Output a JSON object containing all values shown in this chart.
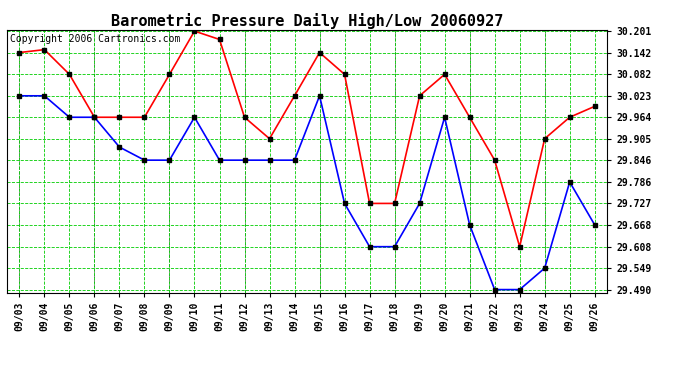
{
  "title": "Barometric Pressure Daily High/Low 20060927",
  "copyright": "Copyright 2006 Cartronics.com",
  "background_color": "#ffffff",
  "plot_bg_color": "#ffffff",
  "grid_color": "#00cc00",
  "dates": [
    "09/03",
    "09/04",
    "09/05",
    "09/06",
    "09/07",
    "09/08",
    "09/09",
    "09/10",
    "09/11",
    "09/12",
    "09/13",
    "09/14",
    "09/15",
    "09/16",
    "09/17",
    "09/18",
    "09/19",
    "09/20",
    "09/21",
    "09/22",
    "09/23",
    "09/24",
    "09/25",
    "09/26"
  ],
  "high_values": [
    30.142,
    30.15,
    30.082,
    29.964,
    29.964,
    29.964,
    30.082,
    30.201,
    30.178,
    29.964,
    29.905,
    30.023,
    30.142,
    30.082,
    29.727,
    29.727,
    30.023,
    30.082,
    29.964,
    29.846,
    29.608,
    29.905,
    29.964,
    29.994
  ],
  "low_values": [
    30.023,
    30.023,
    29.964,
    29.964,
    29.882,
    29.846,
    29.846,
    29.964,
    29.846,
    29.846,
    29.846,
    29.846,
    30.023,
    29.727,
    29.608,
    29.608,
    29.727,
    29.964,
    29.668,
    29.49,
    29.49,
    29.549,
    29.786,
    29.668
  ],
  "high_color": "#ff0000",
  "low_color": "#0000ff",
  "marker_color": "#000000",
  "marker_size": 3,
  "line_width": 1.2,
  "ylim_lo": 29.49,
  "ylim_hi": 30.201,
  "yticks": [
    29.49,
    29.549,
    29.608,
    29.668,
    29.727,
    29.786,
    29.846,
    29.905,
    29.964,
    30.023,
    30.082,
    30.142,
    30.201
  ],
  "title_fontsize": 11,
  "tick_fontsize": 7,
  "copyright_fontsize": 7,
  "vgray_positions": [
    0,
    3,
    6,
    9,
    12,
    15,
    18,
    21
  ]
}
